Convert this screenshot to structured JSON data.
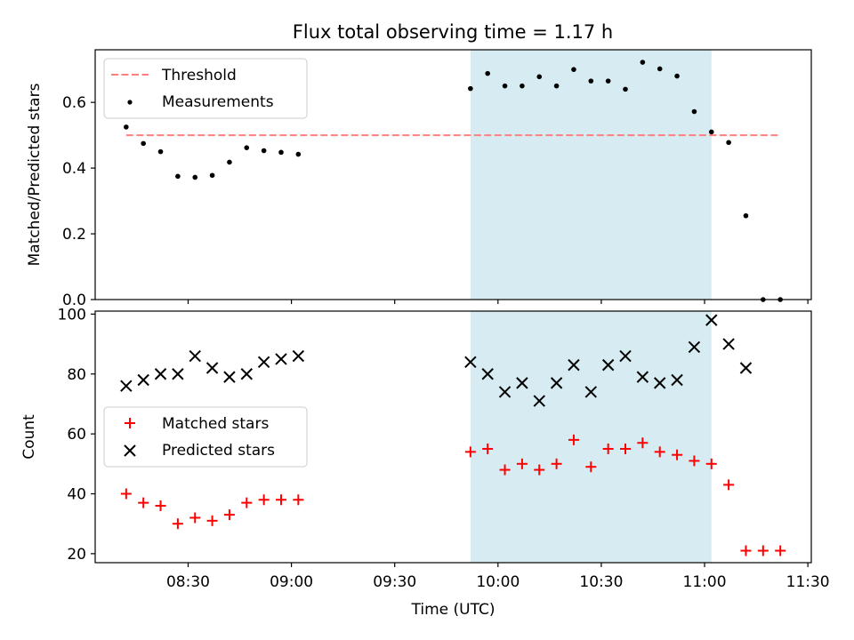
{
  "title": "Flux total observing time = 1.17 h",
  "colors": {
    "threshold": "#ff7f7f",
    "measurements": "#000000",
    "matched": "#ff0000",
    "predicted": "#000000",
    "shade": "#add8e6"
  },
  "chart_data": [
    {
      "type": "scatter",
      "panel": "top",
      "ylabel": "Matched/Predicted stars",
      "ylim": [
        0,
        0.76
      ],
      "yticks": [
        0.0,
        0.2,
        0.4,
        0.6
      ],
      "ytick_labels": [
        "0.0",
        "0.2",
        "0.4",
        "0.6"
      ],
      "xlim": [
        "08:03",
        "11:31"
      ],
      "shaded_span": [
        "09:52",
        "11:02"
      ],
      "legend": [
        "Threshold",
        "Measurements"
      ],
      "legend_position": "upper-left",
      "series": [
        {
          "name": "Threshold",
          "style": "dashed-line",
          "x": [
            "08:12",
            "11:22"
          ],
          "y": [
            0.5,
            0.5
          ]
        },
        {
          "name": "Measurements",
          "style": "dot",
          "x": [
            "08:12",
            "08:17",
            "08:22",
            "08:27",
            "08:32",
            "08:37",
            "08:42",
            "08:47",
            "08:52",
            "08:57",
            "09:02",
            "09:52",
            "09:57",
            "10:02",
            "10:07",
            "10:12",
            "10:17",
            "10:22",
            "10:27",
            "10:32",
            "10:37",
            "10:42",
            "10:47",
            "10:52",
            "10:57",
            "11:02",
            "11:07",
            "11:12",
            "11:17",
            "11:22"
          ],
          "y": [
            0.525,
            0.475,
            0.45,
            0.375,
            0.372,
            0.378,
            0.418,
            0.462,
            0.453,
            0.448,
            0.442,
            0.642,
            0.688,
            0.65,
            0.65,
            0.678,
            0.65,
            0.7,
            0.665,
            0.665,
            0.64,
            0.722,
            0.702,
            0.68,
            0.572,
            0.51,
            0.478,
            0.255,
            0.0,
            0.0
          ]
        }
      ]
    },
    {
      "type": "scatter",
      "panel": "bottom",
      "ylabel": "Count",
      "xlabel": "Time (UTC)",
      "ylim": [
        17,
        101
      ],
      "yticks": [
        20,
        40,
        60,
        80,
        100
      ],
      "ytick_labels": [
        "20",
        "40",
        "60",
        "80",
        "100"
      ],
      "xlim": [
        "08:03",
        "11:31"
      ],
      "xticks": [
        "08:30",
        "09:00",
        "09:30",
        "10:00",
        "10:30",
        "11:00",
        "11:30"
      ],
      "shaded_span": [
        "09:52",
        "11:02"
      ],
      "legend": [
        "Matched stars",
        "Predicted stars"
      ],
      "legend_position": "center-left",
      "series": [
        {
          "name": "Matched stars",
          "style": "plus",
          "x": [
            "08:12",
            "08:17",
            "08:22",
            "08:27",
            "08:32",
            "08:37",
            "08:42",
            "08:47",
            "08:52",
            "08:57",
            "09:02",
            "09:52",
            "09:57",
            "10:02",
            "10:07",
            "10:12",
            "10:17",
            "10:22",
            "10:27",
            "10:32",
            "10:37",
            "10:42",
            "10:47",
            "10:52",
            "10:57",
            "11:02",
            "11:07",
            "11:12",
            "11:17",
            "11:22"
          ],
          "y": [
            40,
            37,
            36,
            30,
            32,
            31,
            33,
            37,
            38,
            38,
            38,
            54,
            55,
            48,
            50,
            48,
            50,
            58,
            49,
            55,
            55,
            57,
            54,
            53,
            51,
            50,
            43,
            21,
            21,
            21
          ]
        },
        {
          "name": "Predicted stars",
          "style": "x",
          "x": [
            "08:12",
            "08:17",
            "08:22",
            "08:27",
            "08:32",
            "08:37",
            "08:42",
            "08:47",
            "08:52",
            "08:57",
            "09:02",
            "09:52",
            "09:57",
            "10:02",
            "10:07",
            "10:12",
            "10:17",
            "10:22",
            "10:27",
            "10:32",
            "10:37",
            "10:42",
            "10:47",
            "10:52",
            "10:57",
            "11:02",
            "11:07",
            "11:12"
          ],
          "y": [
            76,
            78,
            80,
            80,
            86,
            82,
            79,
            80,
            84,
            85,
            86,
            84,
            80,
            74,
            77,
            71,
            77,
            83,
            74,
            83,
            86,
            79,
            77,
            78,
            89,
            98,
            90,
            82
          ]
        }
      ]
    }
  ]
}
